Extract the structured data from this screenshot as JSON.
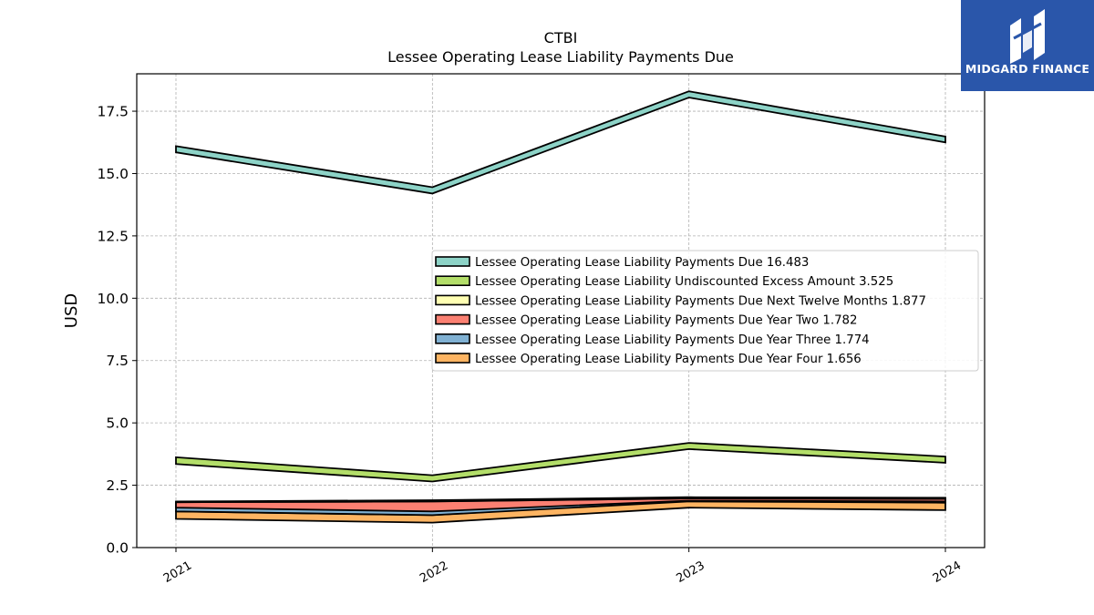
{
  "chart_data": {
    "type": "area",
    "title": "CTBI",
    "subtitle": "Lessee Operating Lease Liability Payments Due",
    "xlabel": "",
    "ylabel": "USD",
    "categories": [
      "2021",
      "2022",
      "2023",
      "2024"
    ],
    "ylim": [
      0,
      19
    ],
    "yticks": [
      0.0,
      2.5,
      5.0,
      7.5,
      10.0,
      12.5,
      15.0,
      17.5
    ],
    "ytick_labels": [
      "0.0",
      "2.5",
      "5.0",
      "7.5",
      "10.0",
      "12.5",
      "15.0",
      "17.5"
    ],
    "grid": true,
    "legend_position": "center-right",
    "series": [
      {
        "name": "Lessee Operating Lease Liability Payments Due",
        "legend_label": "Lessee Operating Lease Liability Payments Due  16.483",
        "color": "#8dd3c7",
        "upper": [
          16.1,
          14.45,
          18.3,
          16.483
        ],
        "lower": [
          15.85,
          14.2,
          18.05,
          16.25
        ]
      },
      {
        "name": "Lessee Operating Lease Liability Undiscounted Excess Amount",
        "legend_label": "Lessee Operating Lease Liability Undiscounted Excess Amount  3.525",
        "color": "#b3de69",
        "upper": [
          3.62,
          2.9,
          4.2,
          3.65
        ],
        "lower": [
          3.35,
          2.65,
          3.95,
          3.4
        ]
      },
      {
        "name": "Lessee Operating Lease Liability Payments Due Next Twelve Months",
        "legend_label": "Lessee Operating Lease Liability Payments Due Next Twelve Months  1.877",
        "color": "#ffffb3",
        "upper": [
          1.85,
          1.9,
          2.02,
          2.0
        ],
        "lower": [
          1.82,
          1.85,
          1.97,
          1.95
        ]
      },
      {
        "name": "Lessee Operating Lease Liability Payments Due Year Two",
        "legend_label": "Lessee Operating Lease Liability Payments Due Year Two  1.782",
        "color": "#fb8072",
        "upper": [
          1.82,
          1.85,
          1.97,
          1.95
        ],
        "lower": [
          1.6,
          1.45,
          1.88,
          1.85
        ]
      },
      {
        "name": "Lessee Operating Lease Liability Payments Due Year Three",
        "legend_label": "Lessee Operating Lease Liability Payments Due Year Three  1.774",
        "color": "#80b1d3",
        "upper": [
          1.8,
          1.6,
          1.92,
          1.9
        ],
        "lower": [
          1.45,
          1.3,
          1.85,
          1.8
        ]
      },
      {
        "name": "Lessee Operating Lease Liability Payments Due Year Four",
        "legend_label": "Lessee Operating Lease Liability Payments Due Year Four  1.656",
        "color": "#fdb462",
        "upper": [
          1.45,
          1.3,
          1.9,
          1.8
        ],
        "lower": [
          1.15,
          1.0,
          1.6,
          1.5
        ]
      }
    ]
  },
  "logo": {
    "text": "MIDGARD FINANCE",
    "background": "#2a56aa"
  }
}
